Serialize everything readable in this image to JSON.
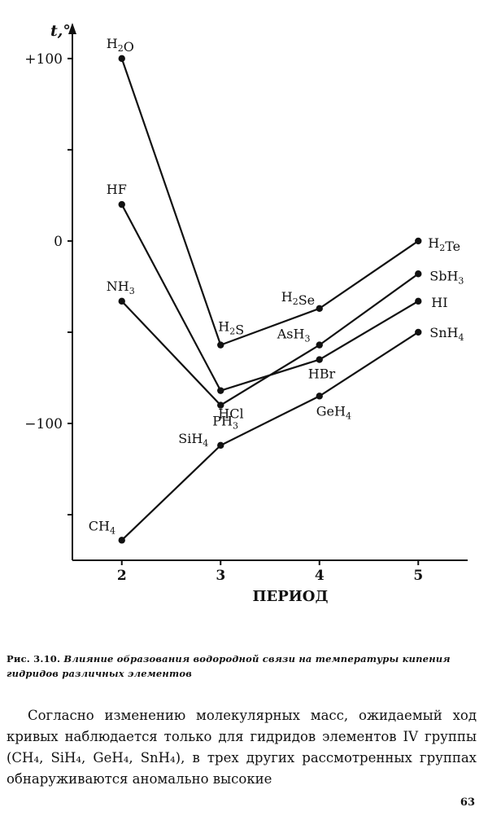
{
  "chart_data": {
    "type": "line",
    "xlabel": "ПЕРИОД",
    "ylabel": "t,°",
    "xlim": [
      1.5,
      5.5
    ],
    "ylim": [
      -175,
      112
    ],
    "x_ticks": [
      2,
      3,
      4,
      5
    ],
    "y_ticks": [
      100,
      50,
      0,
      -50,
      -100,
      -150
    ],
    "y_tick_labels": [
      "+100",
      "",
      "0",
      "",
      "−100",
      ""
    ],
    "grid": false,
    "series": [
      {
        "name": "",
        "points": [
          {
            "x": 2,
            "y": 100,
            "label": "H₂O"
          },
          {
            "x": 3,
            "y": -57,
            "label": "H₂S"
          },
          {
            "x": 4,
            "y": -37,
            "label": "H₂Se"
          },
          {
            "x": 5,
            "y": 0,
            "label": "H₂Te"
          }
        ]
      },
      {
        "name": "",
        "points": [
          {
            "x": 2,
            "y": 20,
            "label": "HF"
          },
          {
            "x": 3,
            "y": -82,
            "label": "HCl"
          },
          {
            "x": 4,
            "y": -65,
            "label": "HBr"
          },
          {
            "x": 5,
            "y": -33,
            "label": "HI"
          }
        ]
      },
      {
        "name": "",
        "points": [
          {
            "x": 2,
            "y": -33,
            "label": "NH₃"
          },
          {
            "x": 3,
            "y": -90,
            "label": "PH₃"
          },
          {
            "x": 4,
            "y": -57,
            "label": "AsH₃"
          },
          {
            "x": 5,
            "y": -18,
            "label": "SbH₃"
          }
        ]
      },
      {
        "name": "",
        "points": [
          {
            "x": 2,
            "y": -164,
            "label": "CH₄"
          },
          {
            "x": 3,
            "y": -112,
            "label": "SiH₄"
          },
          {
            "x": 4,
            "y": -85,
            "label": "GeH₄"
          },
          {
            "x": 5,
            "y": -50,
            "label": "SnH₄"
          }
        ]
      }
    ]
  },
  "caption": {
    "figure_number": "Рис. 3.10.",
    "text": "Влияние образования водородной связи на температуры кипения гидридов различных элементов"
  },
  "body": {
    "paragraph": "Согласно изменению молекулярных масс, ожидаемый ход кривых наблюдается только для гидридов элементов IV группы (CH₄, SiH₄, GeH₄, SnH₄), в трех других рассмотренных группах обнаруживаются аномально высокие"
  },
  "page_number": "63"
}
